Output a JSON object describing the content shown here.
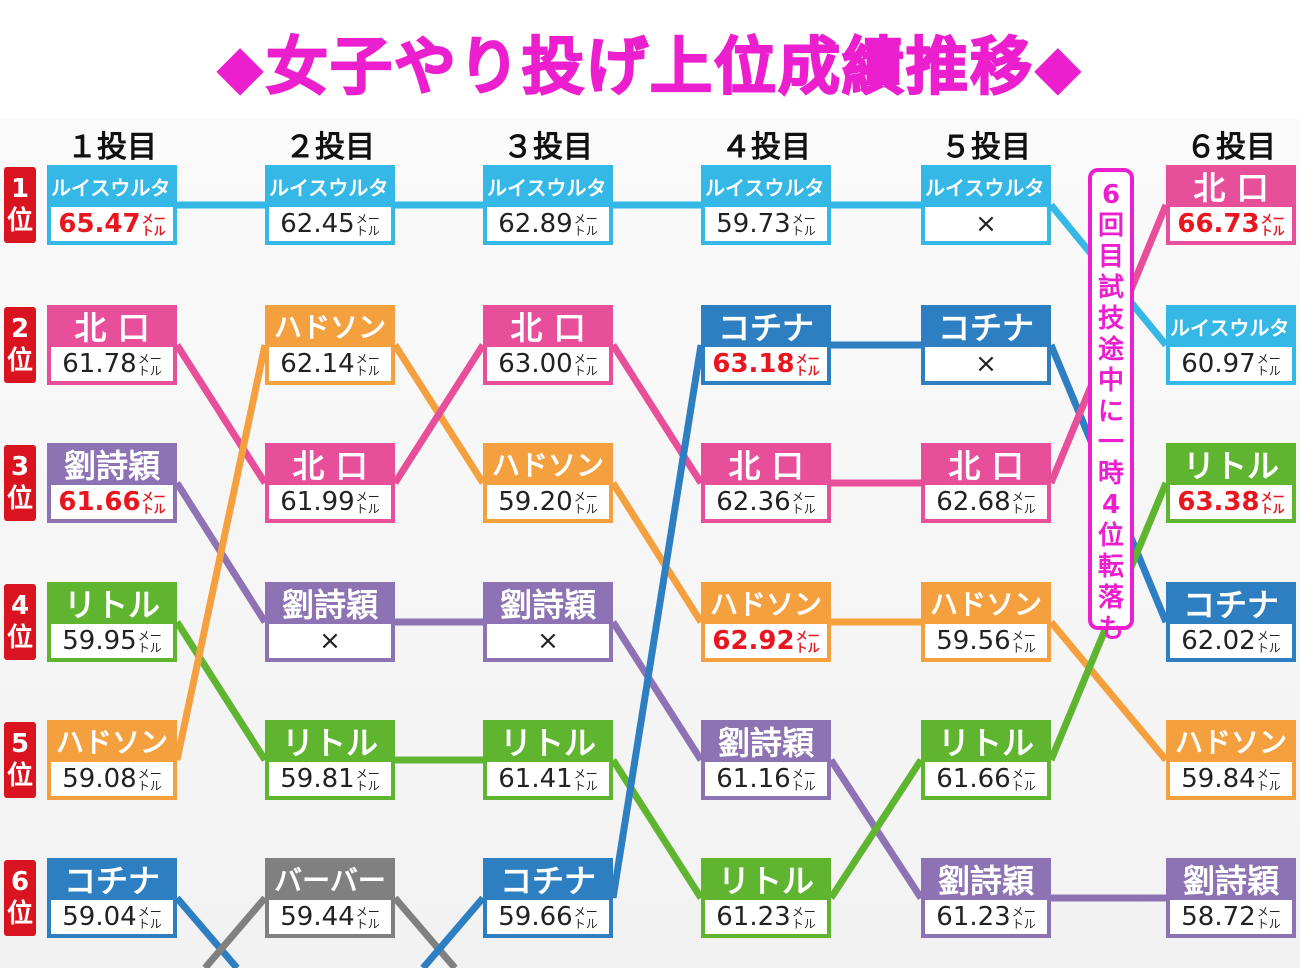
{
  "title": "女子やり投げ上位成績推移",
  "title_marks": {
    "left": "◆",
    "right": "◆"
  },
  "rank_suffix": "位",
  "unit": "メートル",
  "foul_mark": "×",
  "note": "6回目試技途中に一時4位転落も",
  "colors": {
    "ルイスウルタド": "#36b8e6",
    "北口": "#e84f9a",
    "劉詩穎": "#8d73b3",
    "リトル": "#5fb530",
    "ハドソン": "#f5a03f",
    "コチナ": "#2d7fc2",
    "バーバー": "#808080",
    "accent_red": "#e8161f",
    "title_pink": "#ec1fce",
    "rank_red": "#d9131f"
  },
  "chart_data": {
    "type": "table",
    "title": "女子やり投げ上位成績推移",
    "columns": [
      "１投目",
      "２投目",
      "３投目",
      "４投目",
      "５投目",
      "６投目"
    ],
    "ranks": [
      "1",
      "2",
      "3",
      "4",
      "5",
      "6"
    ],
    "rounds": [
      [
        {
          "rank": 1,
          "athlete": "ルイスウルタド",
          "mark": "65.47",
          "best": true
        },
        {
          "rank": 2,
          "athlete": "北 口",
          "mark": "61.78",
          "best": false
        },
        {
          "rank": 3,
          "athlete": "劉詩穎",
          "mark": "61.66",
          "best": true
        },
        {
          "rank": 4,
          "athlete": "リトル",
          "mark": "59.95",
          "best": false
        },
        {
          "rank": 5,
          "athlete": "ハドソン",
          "mark": "59.08",
          "best": false
        },
        {
          "rank": 6,
          "athlete": "コチナ",
          "mark": "59.04",
          "best": false
        }
      ],
      [
        {
          "rank": 1,
          "athlete": "ルイスウルタド",
          "mark": "62.45",
          "best": false
        },
        {
          "rank": 2,
          "athlete": "ハドソン",
          "mark": "62.14",
          "best": false
        },
        {
          "rank": 3,
          "athlete": "北 口",
          "mark": "61.99",
          "best": false
        },
        {
          "rank": 4,
          "athlete": "劉詩穎",
          "mark": "×",
          "best": false
        },
        {
          "rank": 5,
          "athlete": "リトル",
          "mark": "59.81",
          "best": false
        },
        {
          "rank": 6,
          "athlete": "バーバー",
          "mark": "59.44",
          "best": false
        }
      ],
      [
        {
          "rank": 1,
          "athlete": "ルイスウルタド",
          "mark": "62.89",
          "best": false
        },
        {
          "rank": 2,
          "athlete": "北 口",
          "mark": "63.00",
          "best": false
        },
        {
          "rank": 3,
          "athlete": "ハドソン",
          "mark": "59.20",
          "best": false
        },
        {
          "rank": 4,
          "athlete": "劉詩穎",
          "mark": "×",
          "best": false
        },
        {
          "rank": 5,
          "athlete": "リトル",
          "mark": "61.41",
          "best": false
        },
        {
          "rank": 6,
          "athlete": "コチナ",
          "mark": "59.66",
          "best": false
        }
      ],
      [
        {
          "rank": 1,
          "athlete": "ルイスウルタド",
          "mark": "59.73",
          "best": false
        },
        {
          "rank": 2,
          "athlete": "コチナ",
          "mark": "63.18",
          "best": true
        },
        {
          "rank": 3,
          "athlete": "北 口",
          "mark": "62.36",
          "best": false
        },
        {
          "rank": 4,
          "athlete": "ハドソン",
          "mark": "62.92",
          "best": true
        },
        {
          "rank": 5,
          "athlete": "劉詩穎",
          "mark": "61.16",
          "best": false
        },
        {
          "rank": 6,
          "athlete": "リトル",
          "mark": "61.23",
          "best": false
        }
      ],
      [
        {
          "rank": 1,
          "athlete": "ルイスウルタド",
          "mark": "×",
          "best": false
        },
        {
          "rank": 2,
          "athlete": "コチナ",
          "mark": "×",
          "best": false
        },
        {
          "rank": 3,
          "athlete": "北 口",
          "mark": "62.68",
          "best": false
        },
        {
          "rank": 4,
          "athlete": "ハドソン",
          "mark": "59.56",
          "best": false
        },
        {
          "rank": 5,
          "athlete": "リトル",
          "mark": "61.66",
          "best": false
        },
        {
          "rank": 6,
          "athlete": "劉詩穎",
          "mark": "61.23",
          "best": false
        }
      ],
      [
        {
          "rank": 1,
          "athlete": "北 口",
          "mark": "66.73",
          "best": true
        },
        {
          "rank": 2,
          "athlete": "ルイスウルタド",
          "mark": "60.97",
          "best": false
        },
        {
          "rank": 3,
          "athlete": "リトル",
          "mark": "63.38",
          "best": true
        },
        {
          "rank": 4,
          "athlete": "コチナ",
          "mark": "62.02",
          "best": false
        },
        {
          "rank": 5,
          "athlete": "ハドソン",
          "mark": "59.84",
          "best": false
        },
        {
          "rank": 6,
          "athlete": "劉詩穎",
          "mark": "58.72",
          "best": false
        }
      ]
    ]
  }
}
